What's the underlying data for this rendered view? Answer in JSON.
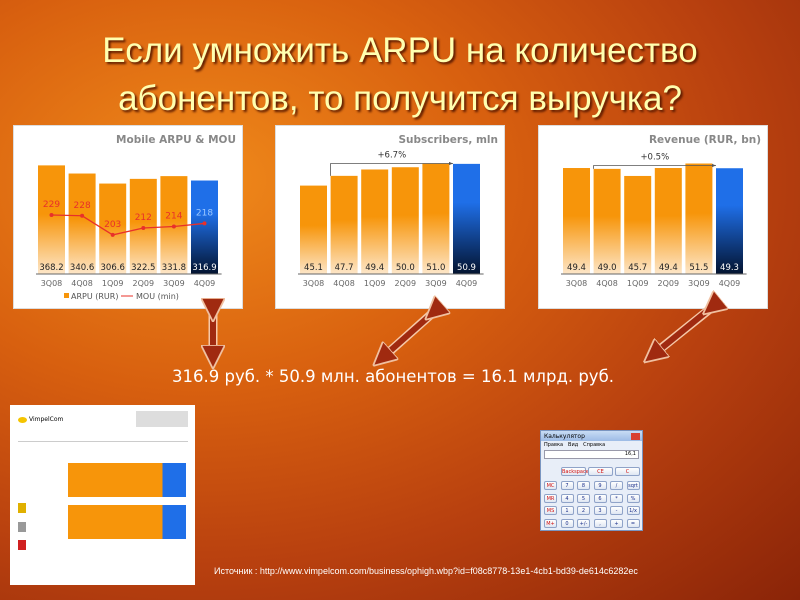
{
  "slide": {
    "title_line1": "Если умножить  ARPU на количество",
    "title_line2": "абонентов, то получится выручка?",
    "equation": "316.9 руб. *  50.9 млн. абонентов = 16.1 млрд. руб.",
    "source": "Источник : http://www.vimpelcom.com/business/ophigh.wbp?id=f08c8778-13e1-4cb1-bd39-de614c6282ec",
    "arrow_color": "#a02a10"
  },
  "thumbnail": {
    "logo": "VimpelCom"
  },
  "calculator": {
    "title": "Калькулятор",
    "menu": [
      "Правка",
      "Вид",
      "Справка"
    ],
    "display": "16,1",
    "top_buttons": [
      "Backspace",
      "CE",
      "C"
    ],
    "rows": [
      [
        "MC",
        "7",
        "8",
        "9",
        "/",
        "sqrt"
      ],
      [
        "MR",
        "4",
        "5",
        "6",
        "*",
        "%"
      ],
      [
        "MS",
        "1",
        "2",
        "3",
        "-",
        "1/x"
      ],
      [
        "M+",
        "0",
        "+/-",
        ",",
        "+",
        "="
      ]
    ]
  },
  "colors": {
    "bar": "#f7950a",
    "bar_highlight": "#1f6fe8",
    "line": "#e8302a"
  },
  "chart_data": [
    {
      "type": "bar",
      "title": "Mobile ARPU & MOU",
      "categories": [
        "3Q08",
        "4Q08",
        "1Q09",
        "2Q09",
        "3Q09",
        "4Q09"
      ],
      "series": [
        {
          "name": "ARPU (RUR)",
          "type": "bar",
          "values": [
            368.2,
            340.6,
            306.6,
            322.5,
            331.8,
            316.9
          ],
          "labels": [
            "368.2",
            "340.6",
            "306.6",
            "322.5",
            "331.8",
            "316.9"
          ]
        },
        {
          "name": "MOU (min)",
          "type": "line",
          "values": [
            229,
            228,
            203,
            212,
            214,
            218
          ],
          "labels": [
            "229",
            "228",
            "203",
            "212",
            "214",
            "218"
          ]
        }
      ],
      "ylim": [
        0,
        400
      ],
      "y2lim": [
        152,
        306
      ],
      "grid": false,
      "legend": "bottom",
      "highlight": "4Q09"
    },
    {
      "type": "bar",
      "title": "Subscribers, mln",
      "categories": [
        "3Q08",
        "4Q08",
        "1Q09",
        "2Q09",
        "3Q09",
        "4Q09"
      ],
      "series": [
        {
          "values": [
            45.1,
            47.7,
            49.4,
            50.0,
            51.0,
            50.9
          ],
          "labels": [
            "45.1",
            "47.7",
            "49.4",
            "50.0",
            "51.0",
            "50.9"
          ]
        }
      ],
      "annotation": {
        "text": "+6.7%",
        "from": "4Q08",
        "to": "4Q09"
      },
      "ylim": [
        21.5,
        53
      ],
      "grid": false,
      "highlight": "4Q09"
    },
    {
      "type": "bar",
      "title": "Revenue (RUR, bn)",
      "categories": [
        "3Q08",
        "4Q08",
        "1Q09",
        "2Q09",
        "3Q09",
        "4Q09"
      ],
      "series": [
        {
          "values": [
            49.4,
            49.0,
            45.7,
            49.4,
            51.5,
            49.3
          ],
          "labels": [
            "49.4",
            "49.0",
            "45.7",
            "49.4",
            "51.5",
            "49.3"
          ]
        }
      ],
      "annotation": {
        "text": "+0.5%",
        "from": "4Q08",
        "to": "4Q09"
      },
      "ylim": [
        0,
        55
      ],
      "grid": false,
      "highlight": "4Q09"
    }
  ]
}
